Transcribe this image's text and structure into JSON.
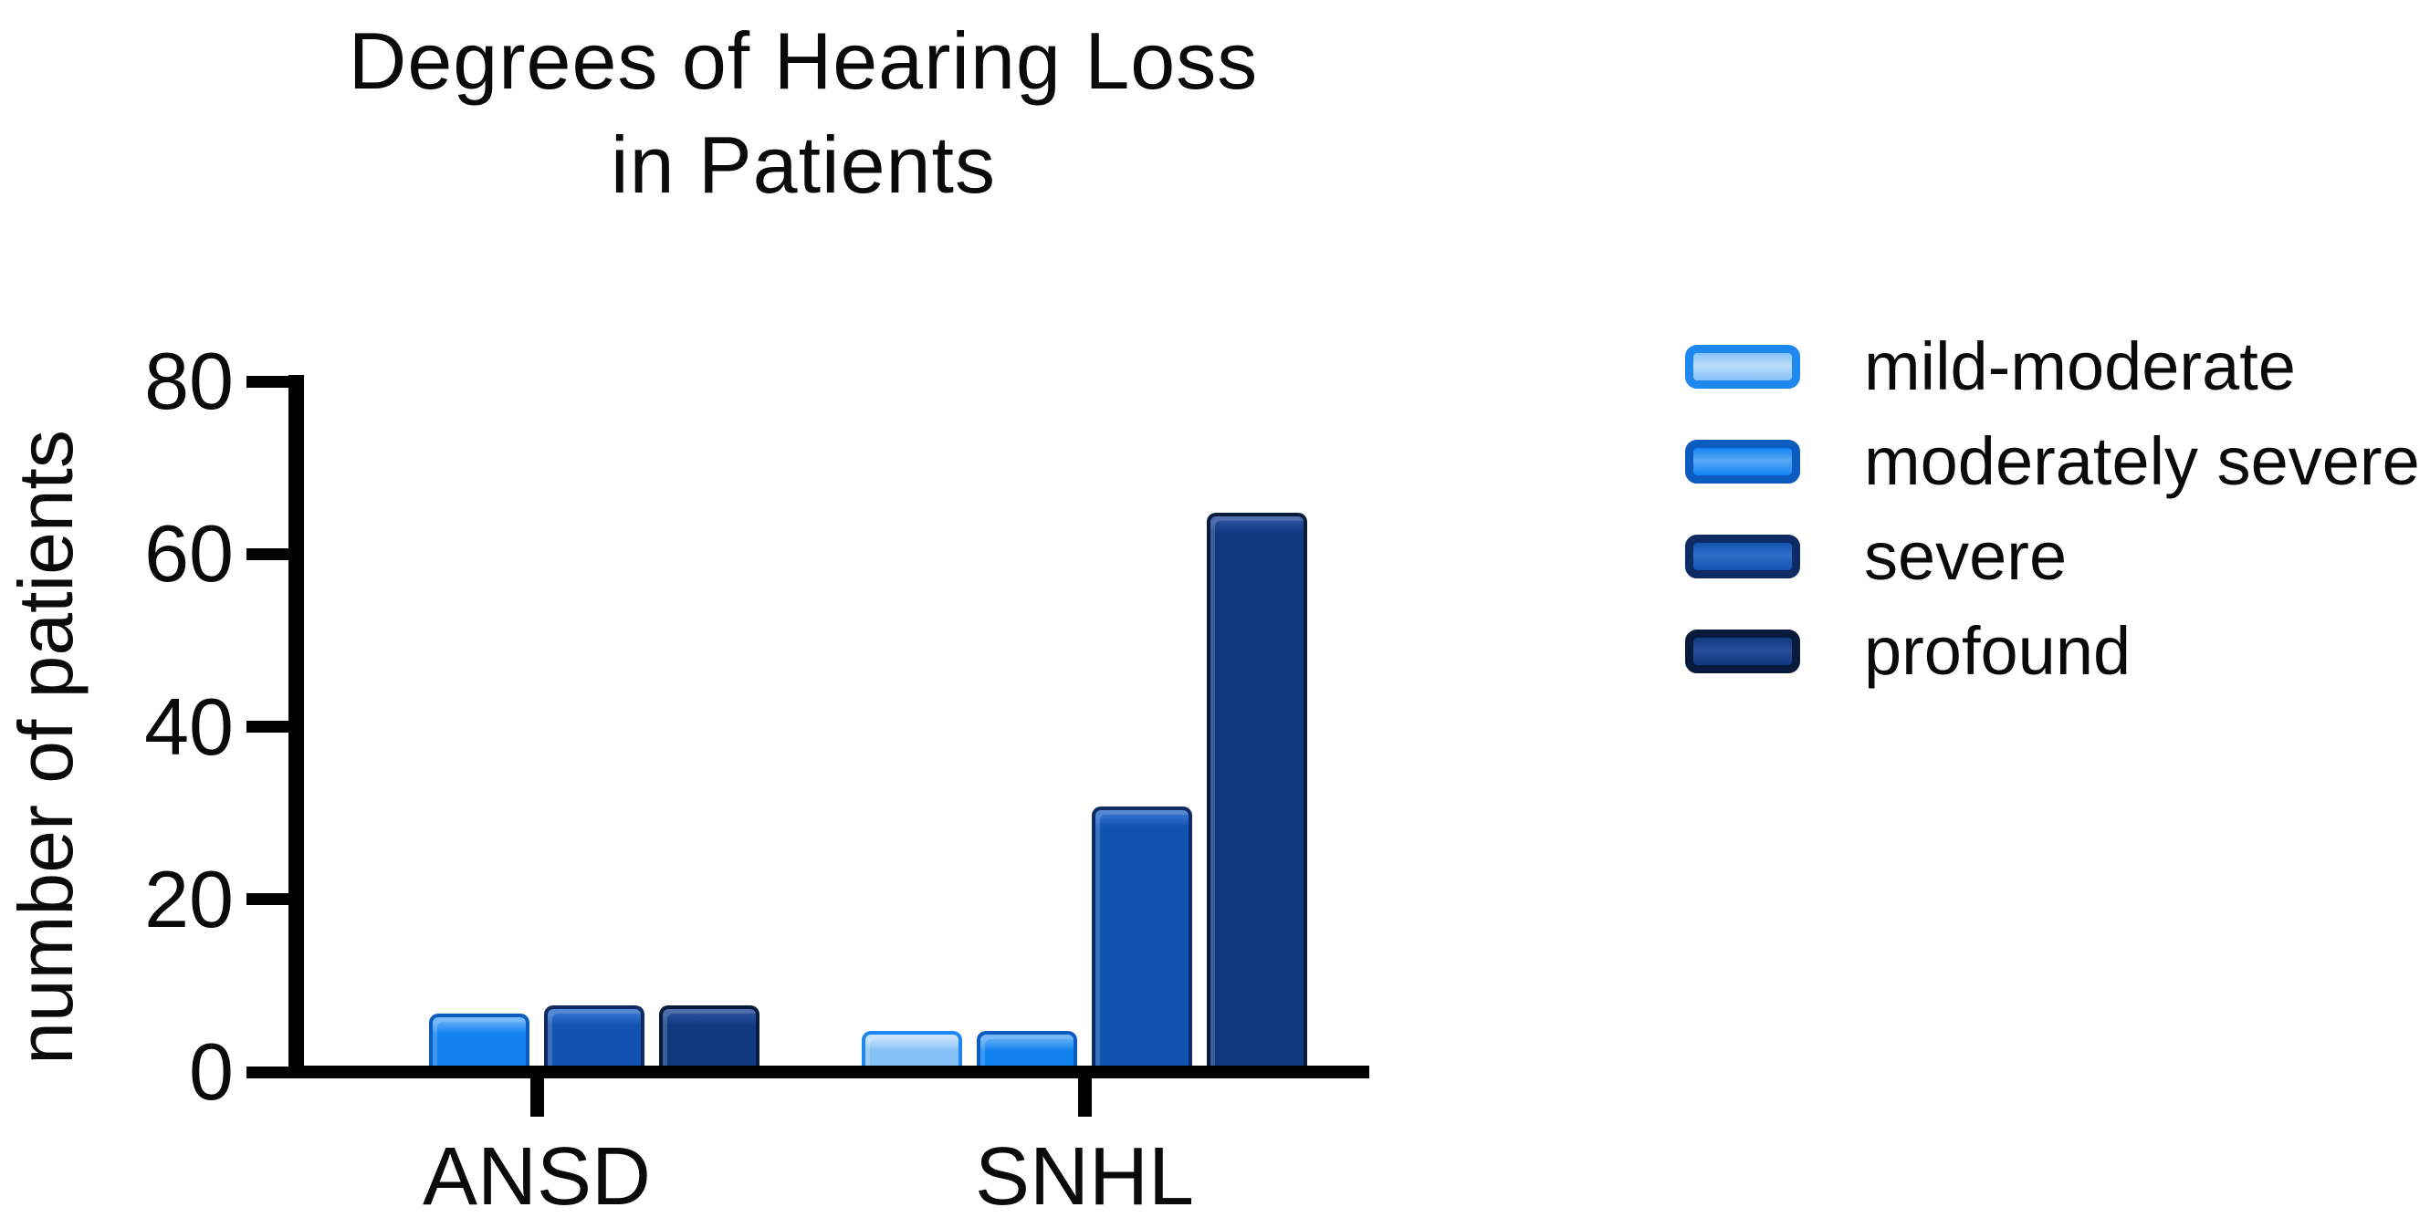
{
  "figure": {
    "title_line1": "Degrees of Hearing Loss",
    "title_line2": "in Patients",
    "background_color": "#ffffff",
    "text_color": "#0a0a0a",
    "axis_color": "#000000"
  },
  "chart_data": {
    "type": "bar",
    "title": "Degrees of Hearing Loss in Patients",
    "xlabel": "",
    "ylabel": "number of patients",
    "categories": [
      "ANSD",
      "SNHL"
    ],
    "series": [
      {
        "name": "mild-moderate",
        "values": [
          0,
          4
        ],
        "fill": "#85C1F7",
        "border": "#1E88EE",
        "highlight": "#BBDDFB"
      },
      {
        "name": "moderately severe",
        "values": [
          6,
          4
        ],
        "fill": "#1182F0",
        "border": "#0C5BBE",
        "highlight": "#5AA9F5"
      },
      {
        "name": "severe",
        "values": [
          7,
          30
        ],
        "fill": "#1153B0",
        "border": "#0E2B63",
        "highlight": "#2F6FC9"
      },
      {
        "name": "profound",
        "values": [
          7,
          64
        ],
        "fill": "#11397F",
        "border": "#081B3D",
        "highlight": "#274E9A"
      }
    ],
    "ylim": [
      0,
      80
    ],
    "yticks": [
      0,
      20,
      40,
      60,
      80
    ],
    "grid": false,
    "legend_position": "right"
  }
}
